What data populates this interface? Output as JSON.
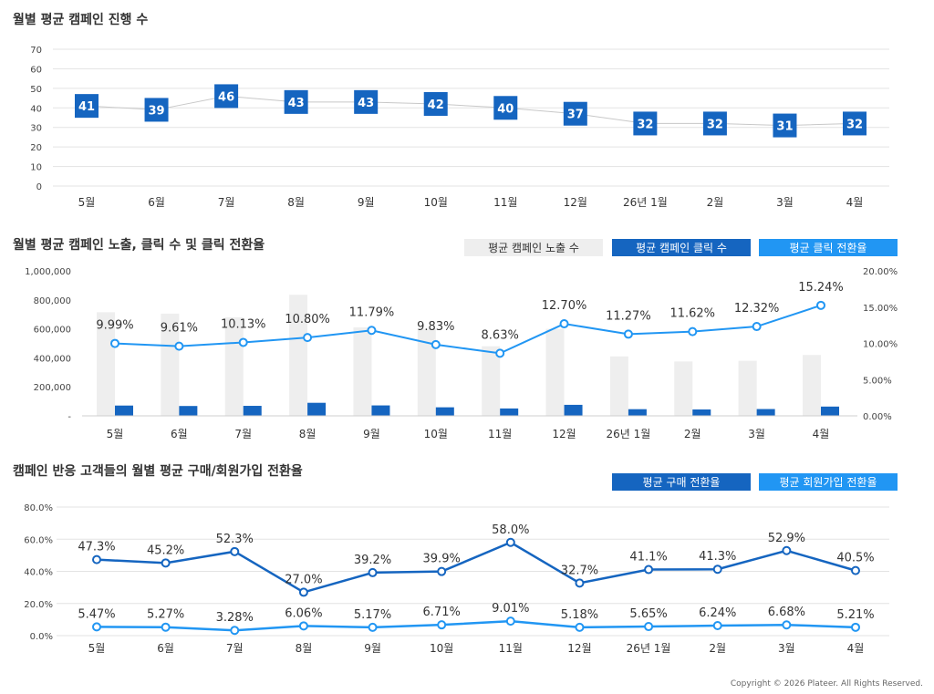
{
  "footer": "Copyright © 2026 Plateer. All Rights Reserved.",
  "chart_data": [
    {
      "type": "line",
      "title": "월별 평균 캠페인 진행 수",
      "categories": [
        "5월",
        "6월",
        "7월",
        "8월",
        "9월",
        "10월",
        "11월",
        "12월",
        "26년 1월",
        "2월",
        "3월",
        "4월"
      ],
      "values": [
        41,
        39,
        46,
        43,
        43,
        42,
        40,
        37,
        32,
        32,
        31,
        32
      ],
      "ylim": [
        0,
        70
      ],
      "yticks": [
        "0",
        "10",
        "20",
        "30",
        "40",
        "50",
        "60",
        "70"
      ],
      "grid": true,
      "colors": {
        "label_box": "#1565c0",
        "line": "#c8c8c8"
      }
    },
    {
      "type": "bar",
      "title": "월별 평균 캠페인 노출, 클릭 수 및 클릭 전환율",
      "categories": [
        "5월",
        "6월",
        "7월",
        "8월",
        "9월",
        "10월",
        "11월",
        "12월",
        "26년 1월",
        "2월",
        "3월",
        "4월"
      ],
      "series": [
        {
          "name": "평균 캠페인 노출 수",
          "type": "bar",
          "axis": "left",
          "color": "#eeeeee",
          "values": [
            715000,
            705000,
            680000,
            835000,
            610000,
            600000,
            480000,
            600000,
            410000,
            375000,
            380000,
            420000
          ]
        },
        {
          "name": "평균 캠페인 클릭 수",
          "type": "bar",
          "axis": "left",
          "color": "#1565c0",
          "values": [
            71000,
            68000,
            69000,
            90000,
            72000,
            59000,
            51000,
            76000,
            46000,
            44000,
            47000,
            64000
          ]
        },
        {
          "name": "평균 클릭 전환율",
          "type": "line",
          "axis": "right",
          "color": "#2196f3",
          "values": [
            9.99,
            9.61,
            10.13,
            10.8,
            11.79,
            9.83,
            8.63,
            12.7,
            11.27,
            11.62,
            12.32,
            15.24
          ],
          "labels": [
            "9.99%",
            "9.61%",
            "10.13%",
            "10.80%",
            "11.79%",
            "9.83%",
            "8.63%",
            "12.70%",
            "11.27%",
            "11.62%",
            "12.32%",
            "15.24%"
          ]
        }
      ],
      "ylim": [
        0,
        1000000
      ],
      "yticks": [
        "-",
        "200,000",
        "400,000",
        "600,000",
        "800,000",
        "1,000,000"
      ],
      "y2lim": [
        0,
        20
      ],
      "y2ticks": [
        "0.00%",
        "5.00%",
        "10.00%",
        "15.00%",
        "20.00%"
      ],
      "grid": false,
      "legend": "top-right"
    },
    {
      "type": "line",
      "title": "캠페인 반응 고객들의 월별 평균 구매/회원가입 전환율",
      "categories": [
        "5월",
        "6월",
        "7월",
        "8월",
        "9월",
        "10월",
        "11월",
        "12월",
        "26년 1월",
        "2월",
        "3월",
        "4월"
      ],
      "series": [
        {
          "name": "평균 구매 전환율",
          "color": "#1565c0",
          "values": [
            47.3,
            45.2,
            52.3,
            27.0,
            39.2,
            39.9,
            58.0,
            32.7,
            41.1,
            41.3,
            52.9,
            40.5
          ],
          "labels": [
            "47.3%",
            "45.2%",
            "52.3%",
            "27.0%",
            "39.2%",
            "39.9%",
            "58.0%",
            "32.7%",
            "41.1%",
            "41.3%",
            "52.9%",
            "40.5%"
          ]
        },
        {
          "name": "평균 회원가입 전환율",
          "color": "#2196f3",
          "values": [
            5.47,
            5.27,
            3.28,
            6.06,
            5.17,
            6.71,
            9.01,
            5.18,
            5.65,
            6.24,
            6.68,
            5.21
          ],
          "labels": [
            "5.47%",
            "5.27%",
            "3.28%",
            "6.06%",
            "5.17%",
            "6.71%",
            "9.01%",
            "5.18%",
            "5.65%",
            "6.24%",
            "6.68%",
            "5.21%"
          ]
        }
      ],
      "ylim": [
        0,
        80
      ],
      "yticks": [
        "0.0%",
        "20.0%",
        "40.0%",
        "60.0%",
        "80.0%"
      ],
      "grid": true,
      "legend": "top-right"
    }
  ]
}
